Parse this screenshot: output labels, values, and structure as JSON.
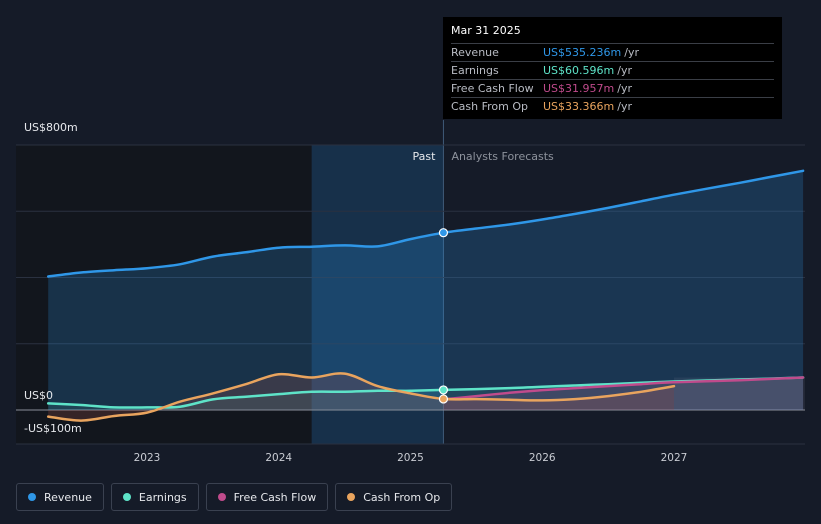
{
  "chart_data": {
    "type": "area",
    "y_axis": {
      "ylim": [
        -100,
        800
      ],
      "labels": [
        {
          "value": 800,
          "text": "US$800m"
        },
        {
          "value": 0,
          "text": "US$0"
        },
        {
          "value": -100,
          "text": "-US$100m"
        }
      ],
      "gridlines": [
        800,
        600,
        400,
        200,
        0
      ]
    },
    "x_axis": {
      "xlim": [
        2022.05,
        2027.98
      ],
      "ticks": [
        {
          "value": 2023,
          "text": "2023"
        },
        {
          "value": 2024,
          "text": "2024"
        },
        {
          "value": 2025,
          "text": "2025"
        },
        {
          "value": 2026,
          "text": "2026"
        },
        {
          "value": 2027,
          "text": "2027"
        }
      ]
    },
    "regions": {
      "past_label": "Past",
      "forecast_label": "Analysts Forecasts",
      "divider_x": 2025.25,
      "dark_zone_end": 2024.25
    },
    "series": [
      {
        "name": "Revenue",
        "color": "#2f97e8",
        "points": [
          [
            2022.25,
            403
          ],
          [
            2022.5,
            415
          ],
          [
            2022.75,
            422
          ],
          [
            2023,
            428
          ],
          [
            2023.25,
            440
          ],
          [
            2023.5,
            463
          ],
          [
            2023.75,
            476
          ],
          [
            2024,
            490
          ],
          [
            2024.25,
            493
          ],
          [
            2024.5,
            497
          ],
          [
            2024.75,
            494
          ],
          [
            2025,
            516
          ],
          [
            2025.25,
            535.236
          ],
          [
            2025.5,
            548
          ],
          [
            2025.75,
            560
          ],
          [
            2026,
            575
          ],
          [
            2026.25,
            592
          ],
          [
            2026.5,
            610
          ],
          [
            2026.75,
            630
          ],
          [
            2027,
            650
          ],
          [
            2027.25,
            668
          ],
          [
            2027.5,
            686
          ],
          [
            2027.75,
            705
          ],
          [
            2027.98,
            722
          ]
        ],
        "past_until": 2025.25
      },
      {
        "name": "Earnings",
        "color": "#5ee3c8",
        "points": [
          [
            2022.25,
            20
          ],
          [
            2022.5,
            15
          ],
          [
            2022.75,
            8
          ],
          [
            2023,
            8
          ],
          [
            2023.25,
            10
          ],
          [
            2023.5,
            32
          ],
          [
            2023.75,
            40
          ],
          [
            2024,
            48
          ],
          [
            2024.25,
            55
          ],
          [
            2024.5,
            55
          ],
          [
            2024.75,
            58
          ],
          [
            2025,
            58
          ],
          [
            2025.25,
            60.596
          ],
          [
            2025.5,
            63
          ],
          [
            2025.75,
            66
          ],
          [
            2026,
            70
          ],
          [
            2026.25,
            74
          ],
          [
            2026.5,
            78
          ],
          [
            2026.75,
            82
          ],
          [
            2027,
            86
          ],
          [
            2027.5,
            92
          ],
          [
            2027.98,
            98
          ]
        ],
        "past_until": 2025.25
      },
      {
        "name": "Free Cash Flow",
        "color": "#c04b8c",
        "points": [
          [
            2025.25,
            31.957
          ],
          [
            2025.5,
            42
          ],
          [
            2025.75,
            52
          ],
          [
            2026,
            60
          ],
          [
            2026.25,
            66
          ],
          [
            2026.5,
            72
          ],
          [
            2026.75,
            78
          ],
          [
            2027,
            84
          ],
          [
            2027.5,
            90
          ],
          [
            2027.98,
            98
          ]
        ],
        "past_until": 2025.25
      },
      {
        "name": "Cash From Op",
        "color": "#e9a45e",
        "points": [
          [
            2022.25,
            -20
          ],
          [
            2022.5,
            -32
          ],
          [
            2022.75,
            -18
          ],
          [
            2023,
            -8
          ],
          [
            2023.25,
            25
          ],
          [
            2023.5,
            50
          ],
          [
            2023.75,
            78
          ],
          [
            2024,
            108
          ],
          [
            2024.25,
            98
          ],
          [
            2024.5,
            110
          ],
          [
            2024.75,
            72
          ],
          [
            2025,
            50
          ],
          [
            2025.25,
            33.366
          ],
          [
            2025.5,
            33
          ],
          [
            2025.75,
            31
          ],
          [
            2026,
            29
          ],
          [
            2026.25,
            33
          ],
          [
            2026.5,
            42
          ],
          [
            2026.75,
            55
          ],
          [
            2027,
            72
          ]
        ],
        "past_until": 2025.25
      }
    ],
    "highlight": {
      "x": 2025.25,
      "date": "Mar 31 2025"
    }
  },
  "tooltip": {
    "date": "Mar 31 2025",
    "rows": [
      {
        "name": "Revenue",
        "value": "US$535.236m",
        "unit": "/yr",
        "color": "#2f97e8"
      },
      {
        "name": "Earnings",
        "value": "US$60.596m",
        "unit": "/yr",
        "color": "#5ee3c8"
      },
      {
        "name": "Free Cash Flow",
        "value": "US$31.957m",
        "unit": "/yr",
        "color": "#c04b8c"
      },
      {
        "name": "Cash From Op",
        "value": "US$33.366m",
        "unit": "/yr",
        "color": "#e9a45e"
      }
    ]
  },
  "legend": [
    {
      "label": "Revenue",
      "color": "#2f97e8"
    },
    {
      "label": "Earnings",
      "color": "#5ee3c8"
    },
    {
      "label": "Free Cash Flow",
      "color": "#c04b8c"
    },
    {
      "label": "Cash From Op",
      "color": "#e9a45e"
    }
  ]
}
